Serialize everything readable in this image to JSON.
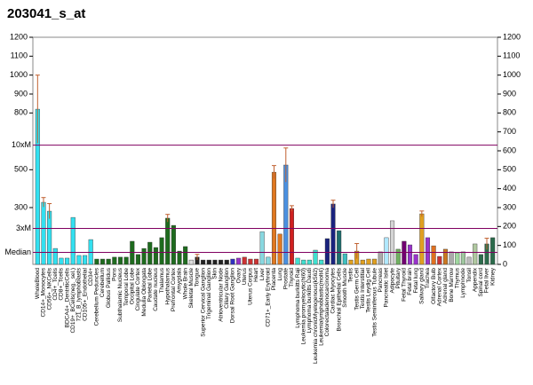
{
  "chart_data": {
    "type": "bar",
    "title": "203041_s_at",
    "categories": [
      "WholeBlood",
      "CD14+_Monocytes",
      "CD56+_NKCells",
      "CD4+_Tcells",
      "CD8+_Tcells",
      "BDCA4+_DentriticCells",
      "CD19+_BCells(neg._sel.)",
      "721_B_lymphoblasts",
      "CD105+_Endothelial",
      "CD34+",
      "Cerebellum Peduncles",
      "Cerebellum",
      "Globus Pallidus",
      "Pons",
      "Subthalamic Nucleus",
      "Temporal Lobe",
      "Occipital Lobe",
      "Cingulate Cortex",
      "Medulla Oblongata",
      "Parietal Lobe",
      "Caudate nucleus",
      "Thalamus",
      "Hypothalamus",
      "Prefrontal Cortex",
      "Amygdala",
      "Whole Brain",
      "Skeletal Muscle",
      "Tongue",
      "Superior Cervical Ganglion",
      "Trigeminal Ganglion",
      "Skin",
      "Atrioventricular Node",
      "Ciliary Ganglion",
      "Dorsal Root Ganglion",
      "Ovary",
      "Uterus",
      "Uterus Corpus",
      "Heart",
      "Liver",
      "CD71+_Early Erythroid",
      "Placenta",
      "Lung",
      "Prostate",
      "Thyroid",
      "Lymphoma burkitts Raji",
      "Leukemia promyelocytic(hl60)",
      "Lymphoma burkitts Daudi",
      "Leukemia chronicMyelogenous(k562)",
      "Leukemialymphoblastic(molt4)",
      "Colorectaladenocarcinoma",
      "Cardiac Myocytes",
      "Bronchial Epithelial Cells",
      "Smooth Muscle",
      "Testis",
      "Testis Germ Cell",
      "Testis Interstitial",
      "Testis Leydig Cell",
      "Testis Seminiferous Tubule",
      "Pancreas",
      "Pancreatic Islet",
      "Adipocyte",
      "Pituitary",
      "Fetal Thyroid",
      "Fetal brain",
      "Fetal lung",
      "Salivary gland",
      "Trachea",
      "Olfactory Bulb",
      "Adrenal Cortex",
      "Adrenal gland",
      "Bone Marrow",
      "Thymus",
      "Lymphnode",
      "Tonsil",
      "Appendix",
      "Spinal cord",
      "Fetal liver",
      "Kidney"
    ],
    "values": [
      820,
      328,
      281,
      84,
      33,
      33,
      248,
      47,
      47,
      131,
      28,
      28,
      28,
      38,
      38,
      38,
      122,
      52,
      84,
      117,
      89,
      141,
      244,
      206,
      70,
      94,
      23,
      38,
      23,
      23,
      23,
      23,
      23,
      28,
      33,
      38,
      28,
      28,
      173,
      38,
      487,
      160,
      525,
      295,
      33,
      23,
      23,
      75,
      23,
      136,
      319,
      178,
      56,
      23,
      70,
      23,
      28,
      28,
      66,
      141,
      230,
      80,
      122,
      103,
      52,
      267,
      141,
      98,
      42,
      80,
      66,
      61,
      66,
      38,
      108,
      52,
      108,
      141
    ],
    "errors": [
      180,
      25,
      40,
      null,
      null,
      null,
      null,
      null,
      null,
      null,
      null,
      null,
      null,
      null,
      null,
      null,
      null,
      null,
      null,
      null,
      null,
      null,
      20,
      null,
      null,
      null,
      null,
      15,
      null,
      null,
      null,
      null,
      null,
      null,
      null,
      null,
      null,
      null,
      null,
      null,
      35,
      null,
      90,
      15,
      null,
      null,
      null,
      null,
      null,
      null,
      20,
      null,
      null,
      null,
      40,
      null,
      null,
      null,
      null,
      null,
      null,
      null,
      null,
      null,
      null,
      15,
      null,
      null,
      null,
      null,
      null,
      null,
      null,
      null,
      null,
      null,
      30,
      null
    ],
    "colors": [
      "#33e0f0",
      "#33e0f0",
      "#33e0f0",
      "#33e0f0",
      "#33e0f0",
      "#33e0f0",
      "#33e0f0",
      "#33e0f0",
      "#33e0f0",
      "#33e0f0",
      "#1e6b1e",
      "#1e6b1e",
      "#1e6b1e",
      "#1e6b1e",
      "#1e6b1e",
      "#1e6b1e",
      "#1e6b1e",
      "#1e6b1e",
      "#1e6b1e",
      "#1e6b1e",
      "#1e6b1e",
      "#1e6b1e",
      "#1e6b1e",
      "#1e6b1e",
      "#1e6b1e",
      "#1e6b1e",
      "#dddddd",
      "#222222",
      "#222222",
      "#222222",
      "#222222",
      "#222222",
      "#222222",
      "#3030c0",
      "#9933cc",
      "#cc3333",
      "#cc3333",
      "#cc3333",
      "#88d8e0",
      "#88d8e0",
      "#e07820",
      "#e07820",
      "#4a90e0",
      "#d02020",
      "#40e0d0",
      "#40e0d0",
      "#40e0d0",
      "#40e0d0",
      "#40e0d0",
      "#1a237e",
      "#1a237e",
      "#1e6e6e",
      "#40c0c0",
      "#e0a020",
      "#e0a020",
      "#e0a020",
      "#e0a020",
      "#e0a020",
      "#aaaaaa",
      "#b0e8ff",
      "#d4d4d4",
      "#70b060",
      "#700070",
      "#9933cc",
      "#9933cc",
      "#e0a020",
      "#9933cc",
      "#e07020",
      "#cc3333",
      "#cc7722",
      "#aaaaaa",
      "#a0d8a0",
      "#a0c8a0",
      "#bbbbbb",
      "#b0c8a0",
      "#2b6b4b",
      "#2b6b4b",
      "#2b6b4b"
    ],
    "ylim": [
      0,
      1200
    ],
    "yticks": [
      0,
      100,
      200,
      300,
      400,
      500,
      600,
      700,
      800,
      900,
      1000,
      1100,
      1200
    ],
    "left_yticks": [
      300,
      500,
      800,
      900,
      1000,
      1100,
      1200
    ],
    "reference_lines": [
      {
        "label": "10xM",
        "value": 630,
        "color": "#800060"
      },
      {
        "label": "3xM",
        "value": 190,
        "color": "#800060"
      },
      {
        "label": "Median",
        "value": 63,
        "color": "#800060"
      }
    ]
  }
}
